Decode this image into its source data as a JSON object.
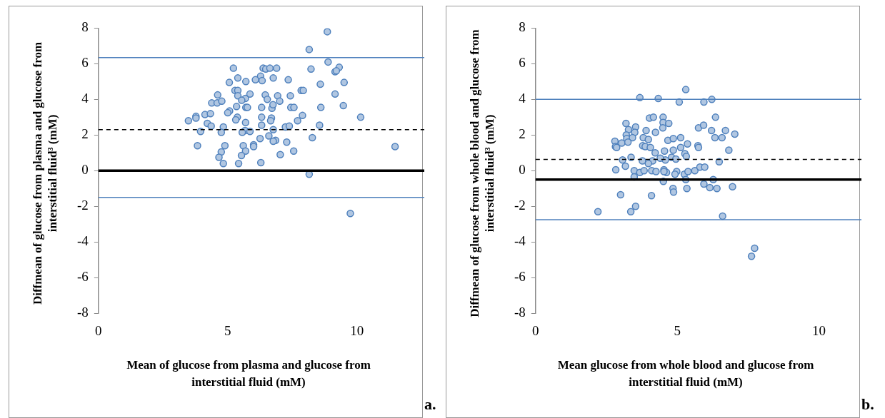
{
  "chart_data": [
    {
      "type": "scatter",
      "xlabel": "Mean of glucose from plasma and glucose from interstitial fluid (mM)",
      "ylabel": "Diffmean of glucose from plasma and glucose from interstitial fluid³ (mM)",
      "annotations": [
        "a."
      ],
      "marker": "circle",
      "grid": false,
      "xlim": [
        0,
        12.6
      ],
      "xticks": [
        0,
        5,
        10
      ],
      "ylim": [
        -8,
        8
      ],
      "yticks": [
        -8,
        -6,
        -4,
        -2,
        0,
        2,
        4,
        6,
        8
      ],
      "ref_lines": [
        {
          "axis": "y",
          "value": 6.35,
          "color": "#4f81bd",
          "line_style": "solid"
        },
        {
          "axis": "y",
          "value": 2.3,
          "color": "#000000",
          "line_style": "dashed"
        },
        {
          "axis": "y",
          "value": 0,
          "color": "#000000",
          "line_style": "solid"
        },
        {
          "axis": "y",
          "value": -1.5,
          "color": "#4f81bd",
          "line_style": "solid"
        }
      ],
      "series": [
        {
          "color": "#4f81bd",
          "x": [
            8.85,
            8.15,
            8.88,
            8.22,
            9.31,
            9.15,
            9.2,
            9.5,
            8.58,
            9.15,
            9.47,
            8.6,
            10.14,
            8.55,
            8.27,
            11.47,
            8.15,
            9.74,
            5.22,
            6.37,
            6.47,
            6.63,
            6.89,
            6.27,
            6.33,
            6.07,
            5.39,
            5.7,
            5.06,
            6.76,
            7.34,
            5.28,
            5.39,
            7.84,
            7.92,
            4.61,
            4.38,
            4.59,
            4.77,
            5.39,
            5.68,
            5.54,
            5.86,
            6.45,
            6.53,
            6.93,
            7.01,
            7.42,
            5.34,
            5.7,
            5.76,
            6.31,
            6.71,
            6.75,
            7.44,
            7.56,
            5.07,
            5.0,
            4.12,
            4.33,
            3.77,
            3.77,
            3.48,
            4.21,
            4.36,
            3.95,
            3.83,
            5.37,
            5.31,
            5.69,
            6.31,
            6.69,
            6.66,
            6.31,
            7.89,
            7.7,
            7.23,
            7.38,
            4.83,
            4.75,
            5.67,
            5.56,
            5.86,
            6.76,
            6.59,
            6.25,
            6.85,
            6.76,
            7.28,
            4.89,
            5.6,
            5.69,
            6.0,
            6.0,
            4.75,
            4.66,
            5.53,
            7.03,
            7.55,
            4.83,
            5.42,
            6.28
          ],
          "values": [
            7.8,
            6.8,
            6.1,
            5.7,
            5.8,
            5.55,
            5.6,
            4.95,
            4.85,
            4.3,
            3.65,
            3.55,
            3.0,
            2.55,
            1.85,
            1.35,
            -0.2,
            -2.4,
            5.75,
            5.75,
            5.7,
            5.75,
            5.75,
            5.3,
            5.05,
            5.1,
            5.2,
            5.0,
            4.95,
            5.2,
            5.1,
            4.5,
            4.5,
            4.5,
            4.5,
            4.25,
            3.8,
            3.8,
            3.9,
            4.2,
            4.05,
            3.95,
            4.3,
            4.25,
            4.0,
            4.2,
            3.9,
            4.2,
            3.6,
            3.55,
            3.55,
            3.55,
            3.5,
            3.7,
            3.55,
            3.55,
            3.35,
            3.25,
            3.15,
            3.2,
            3.05,
            2.95,
            2.8,
            2.65,
            2.5,
            2.2,
            1.4,
            3.0,
            2.85,
            2.7,
            3.0,
            2.95,
            2.8,
            2.55,
            3.1,
            2.8,
            2.45,
            2.5,
            2.45,
            2.15,
            2.25,
            2.15,
            2.2,
            2.3,
            1.95,
            1.8,
            1.7,
            1.65,
            1.6,
            1.4,
            1.4,
            1.1,
            1.45,
            1.35,
            1.05,
            0.75,
            0.85,
            0.9,
            1.1,
            0.4,
            0.4,
            0.45
          ]
        }
      ]
    },
    {
      "type": "scatter",
      "xlabel": "Mean glucose from whole blood and glucose from interstitial fluid (mM)",
      "ylabel": "Diffmean of glucose from whole blood and glucose from interstitial fluid³ (mM)",
      "annotations": [
        "b."
      ],
      "marker": "circle",
      "grid": false,
      "xlim": [
        0,
        11.5
      ],
      "xticks": [
        0,
        5,
        10
      ],
      "ylim": [
        -8,
        8
      ],
      "yticks": [
        -8,
        -6,
        -4,
        -2,
        0,
        2,
        4,
        6,
        8
      ],
      "ref_lines": [
        {
          "axis": "y",
          "value": 4.0,
          "color": "#4f81bd",
          "line_style": "solid"
        },
        {
          "axis": "y",
          "value": 0.63,
          "color": "#000000",
          "line_style": "dashed"
        },
        {
          "axis": "y",
          "value": -0.5,
          "color": "#000000",
          "line_style": "solid"
        },
        {
          "axis": "y",
          "value": -2.75,
          "color": "#4f81bd",
          "line_style": "solid"
        }
      ],
      "series": [
        {
          "color": "#4f81bd",
          "x": [
            5.3,
            3.68,
            4.33,
            5.07,
            5.94,
            6.22,
            6.35,
            4.02,
            4.16,
            4.5,
            3.19,
            4.5,
            4.7,
            3.53,
            3.28,
            3.5,
            3.9,
            4.23,
            4.49,
            3.2,
            3.22,
            3.42,
            2.8,
            3.04,
            3.26,
            2.82,
            2.86,
            3.8,
            3.98,
            3.78,
            3.87,
            4.05,
            4.67,
            4.86,
            5.12,
            5.36,
            5.75,
            5.93,
            6.21,
            6.33,
            6.7,
            7.03,
            6.58,
            5.73,
            5.75,
            6.82,
            5.12,
            4.86,
            4.55,
            4.22,
            5.27,
            5.32,
            4.8,
            4.95,
            4.58,
            4.4,
            4.13,
            3.98,
            3.77,
            3.37,
            3.07,
            3.17,
            2.83,
            3.48,
            3.48,
            3.68,
            3.83,
            4.1,
            4.25,
            4.53,
            4.62,
            4.53,
            4.98,
            4.92,
            5.25,
            5.38,
            5.62,
            5.8,
            5.97,
            6.48,
            6.27,
            4.51,
            5.3,
            5.94,
            6.15,
            6.4,
            6.95,
            4.85,
            4.87,
            5.34,
            3.0,
            4.09,
            2.2,
            3.36,
            3.53,
            6.6,
            7.73,
            7.62
          ],
          "values": [
            4.55,
            4.1,
            4.05,
            3.85,
            3.85,
            4.0,
            3.0,
            2.95,
            3.0,
            3.0,
            2.65,
            2.7,
            2.65,
            2.45,
            2.3,
            2.15,
            2.25,
            2.15,
            2.4,
            2.0,
            1.8,
            1.85,
            1.65,
            1.55,
            1.6,
            1.35,
            1.3,
            1.85,
            1.75,
            1.4,
            1.35,
            1.3,
            1.7,
            1.8,
            1.85,
            1.5,
            2.4,
            2.55,
            2.25,
            1.85,
            2.25,
            2.05,
            1.85,
            1.4,
            1.3,
            1.15,
            1.3,
            1.15,
            1.1,
            1.0,
            0.95,
            0.8,
            0.75,
            0.65,
            0.6,
            0.7,
            0.55,
            0.4,
            0.55,
            0.75,
            0.6,
            0.25,
            0.05,
            0.0,
            -0.35,
            -0.1,
            0.0,
            0.0,
            -0.05,
            0.05,
            -0.1,
            -0.05,
            -0.05,
            -0.2,
            -0.2,
            -0.05,
            0.0,
            0.2,
            0.2,
            0.5,
            -0.5,
            -0.6,
            -0.5,
            -0.75,
            -0.95,
            -1.0,
            -0.9,
            -1.0,
            -1.2,
            -1.0,
            -1.35,
            -1.4,
            -2.3,
            -2.3,
            -2.0,
            -2.55,
            -4.35,
            -4.8
          ]
        }
      ]
    }
  ]
}
